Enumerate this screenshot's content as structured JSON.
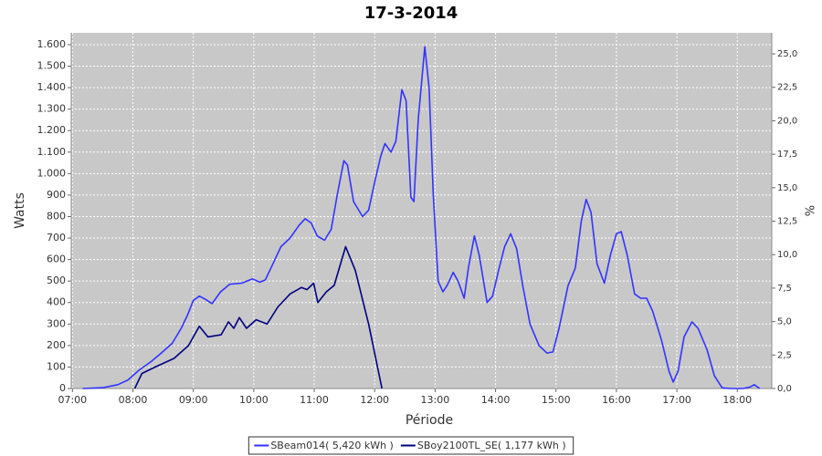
{
  "chart_data": {
    "type": "line",
    "title": "17-3-2014",
    "xlabel": "Période",
    "ylabel": "Watts",
    "y2label": "%",
    "xlim": [
      6.98,
      18.57
    ],
    "xticks": [
      {
        "value": 7,
        "label": "07:00"
      },
      {
        "value": 8,
        "label": "08:00"
      },
      {
        "value": 9,
        "label": "09:00"
      },
      {
        "value": 10,
        "label": "10:00"
      },
      {
        "value": 11,
        "label": "11:00"
      },
      {
        "value": 12,
        "label": "12:00"
      },
      {
        "value": 13,
        "label": "13:00"
      },
      {
        "value": 14,
        "label": "14:00"
      },
      {
        "value": 15,
        "label": "15:00"
      },
      {
        "value": 16,
        "label": "16:00"
      },
      {
        "value": 17,
        "label": "17:00"
      },
      {
        "value": 18,
        "label": "18:00"
      }
    ],
    "ylim": [
      0,
      1655
    ],
    "yticks": [
      0,
      100,
      200,
      300,
      400,
      500,
      600,
      700,
      800,
      900,
      {
        "value": 1000,
        "label": "1.000"
      },
      {
        "value": 1100,
        "label": "1.100"
      },
      {
        "value": 1200,
        "label": "1.200"
      },
      {
        "value": 1300,
        "label": "1.300"
      },
      {
        "value": 1400,
        "label": "1.400"
      },
      {
        "value": 1500,
        "label": "1.500"
      },
      {
        "value": 1600,
        "label": "1.600"
      }
    ],
    "y2lim": [
      0,
      26.57
    ],
    "y2ticks": [
      {
        "value": 0,
        "label": "0,0"
      },
      {
        "value": 2.5,
        "label": "2,5"
      },
      {
        "value": 5,
        "label": "5,0"
      },
      {
        "value": 7.5,
        "label": "7,5"
      },
      {
        "value": 10,
        "label": "10,0"
      },
      {
        "value": 12.5,
        "label": "12,5"
      },
      {
        "value": 15,
        "label": "15,0"
      },
      {
        "value": 17.5,
        "label": "17,5"
      },
      {
        "value": 20,
        "label": "20,0"
      },
      {
        "value": 22.5,
        "label": "22,5"
      },
      {
        "value": 25,
        "label": "25,0"
      }
    ],
    "grid": true,
    "legend": "bottom",
    "series": [
      {
        "name": "SBeam014( 5,420 kWh )",
        "color": "#3333ff",
        "x": [
          7.17,
          7.5,
          7.75,
          7.92,
          8.1,
          8.3,
          8.47,
          8.65,
          8.8,
          8.9,
          9.0,
          9.1,
          9.2,
          9.31,
          9.45,
          9.6,
          9.8,
          9.98,
          10.1,
          10.19,
          10.3,
          10.45,
          10.6,
          10.75,
          10.85,
          10.95,
          11.05,
          11.17,
          11.28,
          11.38,
          11.49,
          11.55,
          11.65,
          11.8,
          11.9,
          12.0,
          12.1,
          12.17,
          12.27,
          12.35,
          12.45,
          12.52,
          12.6,
          12.65,
          12.72,
          12.83,
          12.9,
          12.97,
          13.05,
          13.13,
          13.2,
          13.3,
          13.38,
          13.48,
          13.55,
          13.65,
          13.73,
          13.86,
          13.95,
          14.05,
          14.15,
          14.25,
          14.35,
          14.45,
          14.57,
          14.72,
          14.85,
          14.95,
          15.05,
          15.2,
          15.32,
          15.42,
          15.5,
          15.58,
          15.68,
          15.8,
          15.9,
          16.0,
          16.08,
          16.18,
          16.3,
          16.4,
          16.5,
          16.6,
          16.75,
          16.87,
          16.94,
          17.02,
          17.12,
          17.25,
          17.35,
          17.5,
          17.62,
          17.75,
          17.9,
          18.1,
          18.22,
          18.28,
          18.37
        ],
        "values": [
          0,
          4,
          18,
          40,
          85,
          125,
          165,
          210,
          280,
          340,
          410,
          430,
          415,
          395,
          450,
          485,
          490,
          510,
          495,
          505,
          570,
          660,
          700,
          760,
          790,
          770,
          710,
          690,
          740,
          900,
          1060,
          1040,
          870,
          800,
          830,
          960,
          1080,
          1140,
          1100,
          1150,
          1390,
          1340,
          890,
          870,
          1250,
          1590,
          1400,
          900,
          500,
          450,
          480,
          540,
          500,
          420,
          560,
          710,
          620,
          400,
          430,
          550,
          660,
          720,
          650,
          480,
          300,
          200,
          165,
          170,
          280,
          480,
          560,
          780,
          880,
          820,
          580,
          490,
          620,
          720,
          730,
          620,
          440,
          420,
          420,
          360,
          220,
          80,
          30,
          80,
          240,
          310,
          280,
          180,
          60,
          3,
          0,
          0,
          8,
          18,
          0
        ]
      },
      {
        "name": "SBoy2100TL_SE( 1,177 kWh )",
        "color": "#000080",
        "x": [
          8.03,
          8.15,
          8.37,
          8.68,
          8.92,
          9.1,
          9.24,
          9.46,
          9.58,
          9.67,
          9.76,
          9.88,
          10.04,
          10.22,
          10.4,
          10.6,
          10.79,
          10.88,
          10.99,
          11.06,
          11.2,
          11.33,
          11.52,
          11.68,
          11.9,
          12.12
        ],
        "values": [
          0,
          70,
          100,
          140,
          200,
          290,
          240,
          250,
          310,
          280,
          330,
          280,
          320,
          300,
          380,
          440,
          470,
          460,
          490,
          400,
          450,
          480,
          660,
          550,
          300,
          0
        ]
      }
    ]
  }
}
